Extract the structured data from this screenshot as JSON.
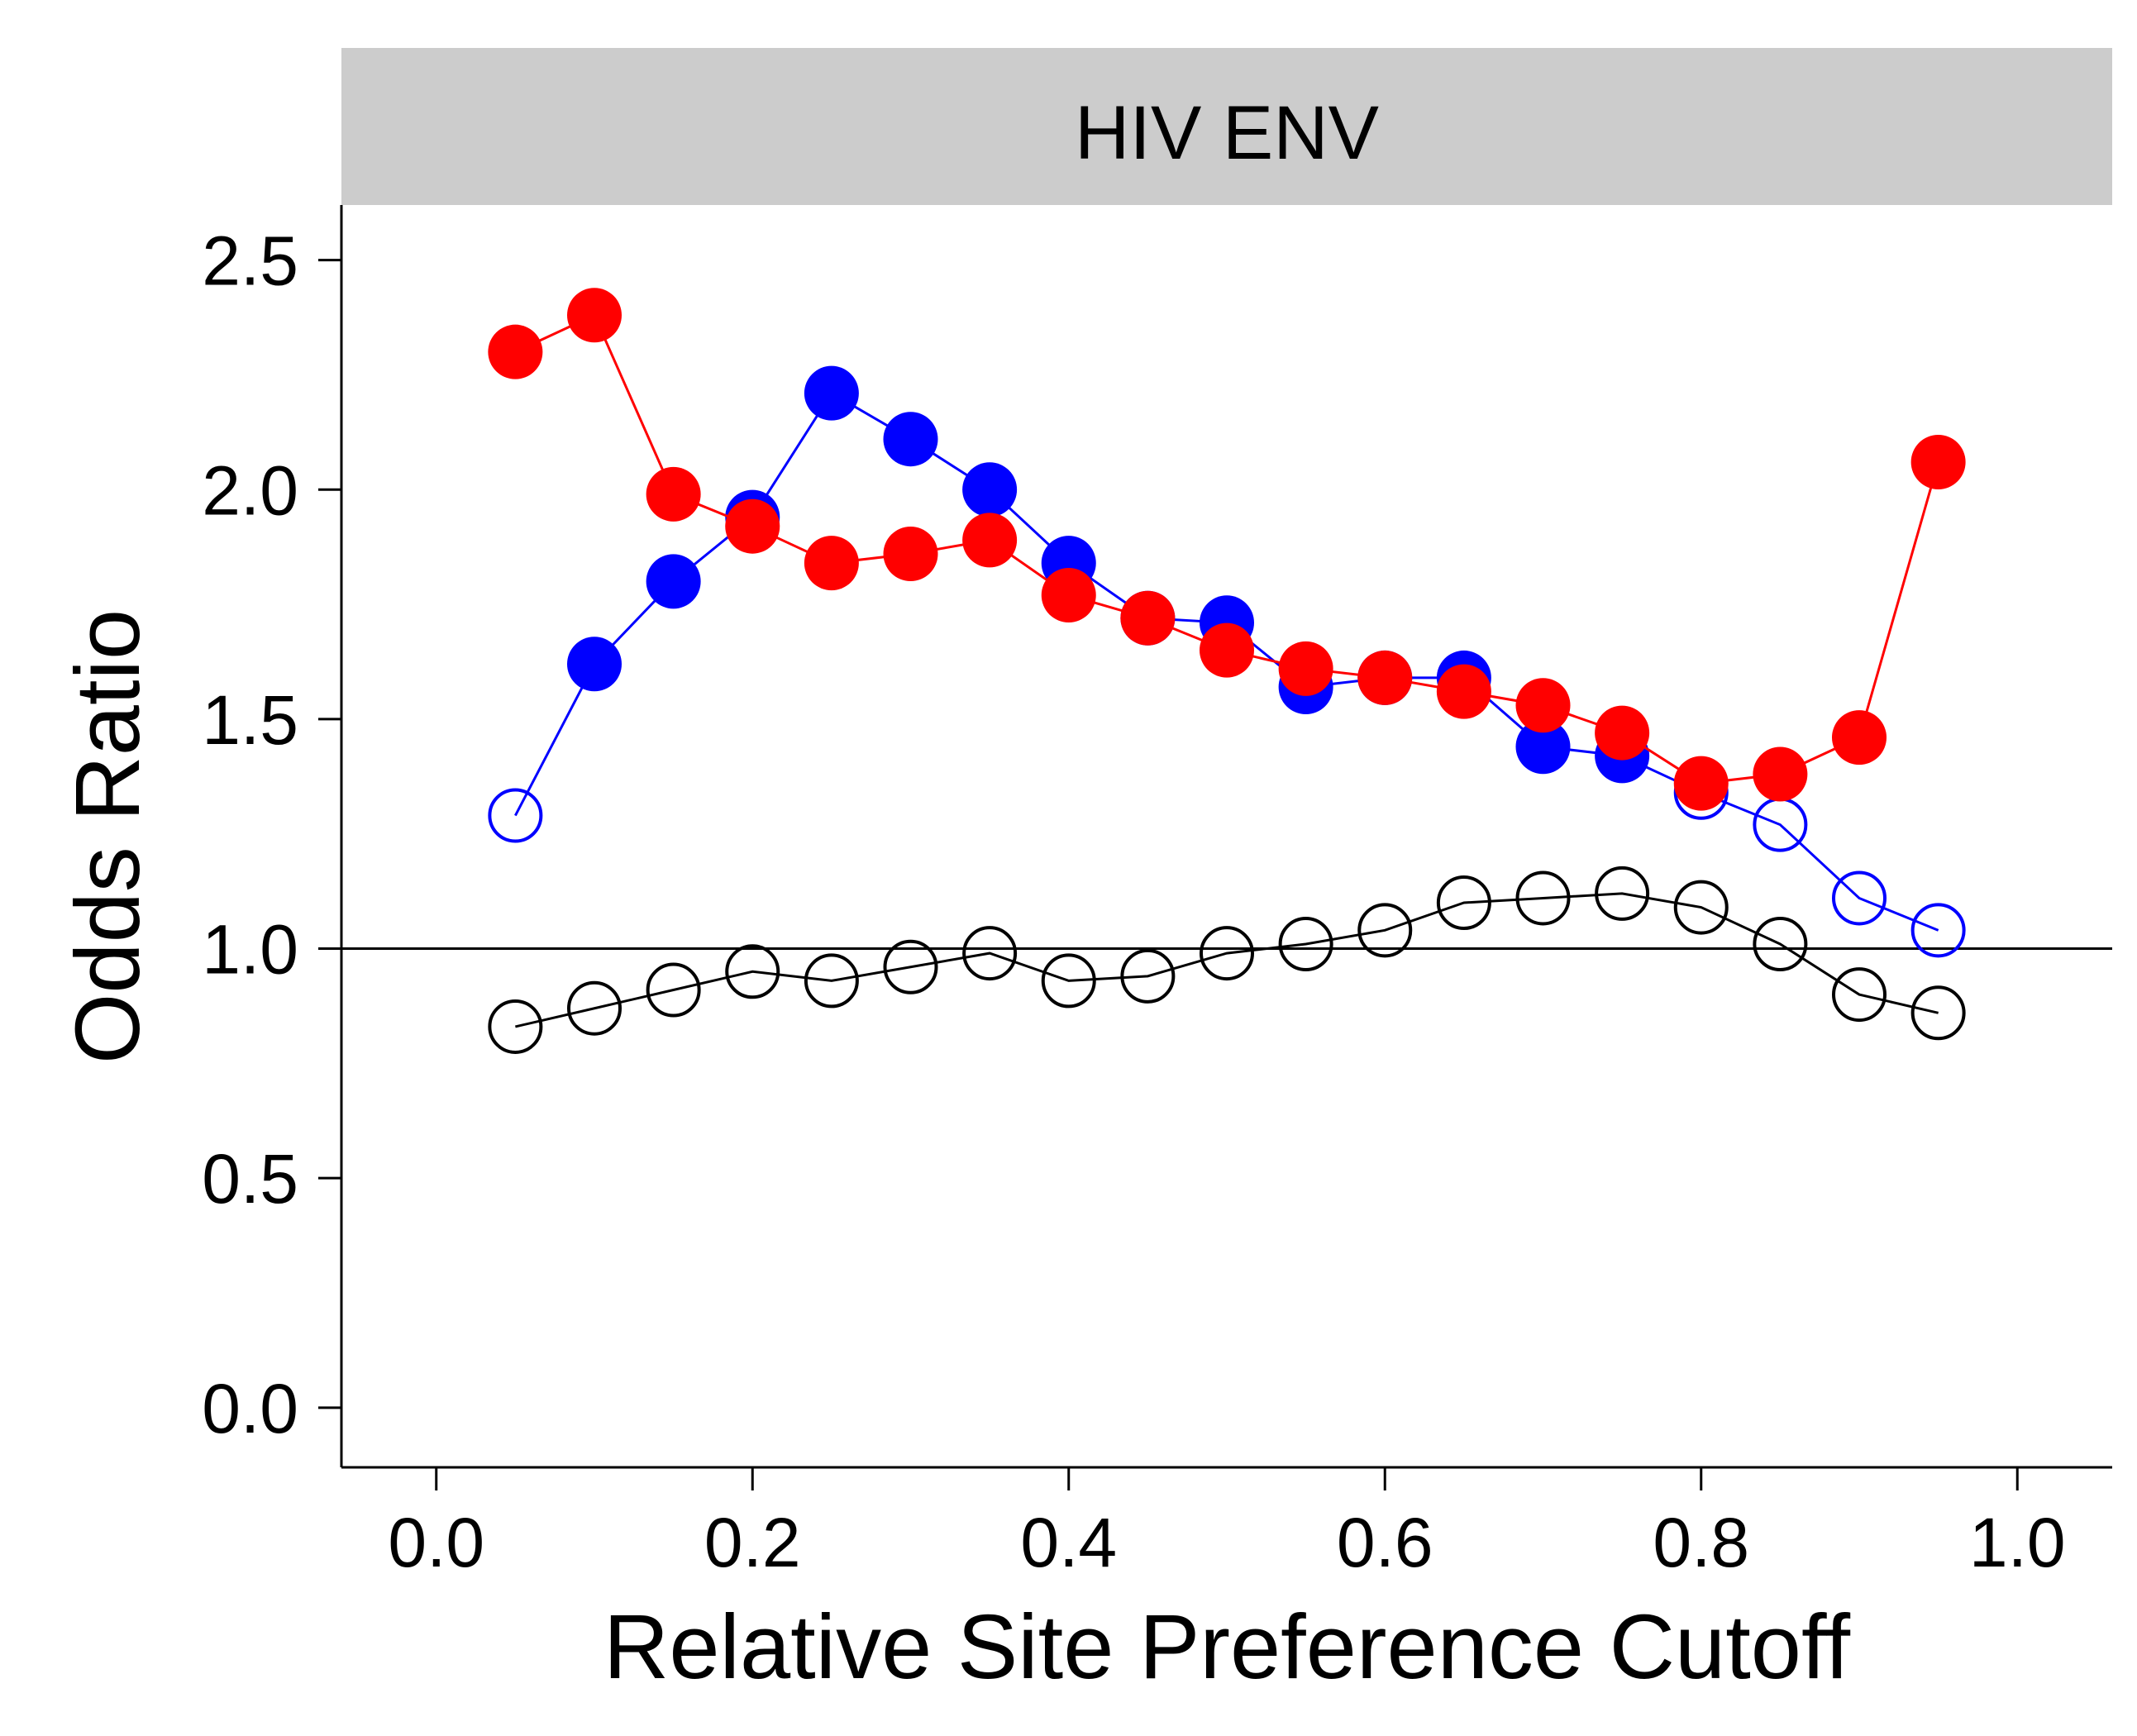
{
  "chart_data": {
    "type": "line",
    "title": "HIV ENV",
    "xlabel": "Relative Site Preference Cutoff",
    "ylabel": "Odds Ratio",
    "xlim": [
      -0.06,
      1.06
    ],
    "ylim": [
      -0.13,
      2.62
    ],
    "x_ticks": [
      "0.0",
      "0.2",
      "0.4",
      "0.6",
      "0.8",
      "1.0"
    ],
    "y_ticks": [
      "0.0",
      "0.5",
      "1.0",
      "1.5",
      "2.0",
      "2.5"
    ],
    "reference_line": 1.0,
    "grid": false,
    "legend": "none",
    "x": [
      0.05,
      0.1,
      0.15,
      0.2,
      0.25,
      0.3,
      0.35,
      0.4,
      0.45,
      0.5,
      0.55,
      0.6,
      0.65,
      0.7,
      0.75,
      0.8,
      0.85,
      0.9,
      0.95
    ],
    "series": [
      {
        "color": "#0000ff",
        "values": [
          1.29,
          1.62,
          1.8,
          1.94,
          2.21,
          2.11,
          2.0,
          1.84,
          1.72,
          1.71,
          1.57,
          1.59,
          1.59,
          1.44,
          1.42,
          1.34,
          1.27,
          1.11,
          1.04
        ],
        "filled": [
          false,
          true,
          true,
          true,
          true,
          true,
          true,
          true,
          true,
          true,
          true,
          true,
          true,
          true,
          true,
          false,
          false,
          false,
          false
        ]
      },
      {
        "color": "#ff0000",
        "values": [
          2.3,
          2.38,
          1.99,
          1.92,
          1.84,
          1.86,
          1.89,
          1.77,
          1.72,
          1.65,
          1.61,
          1.59,
          1.56,
          1.53,
          1.47,
          1.36,
          1.38,
          1.46,
          2.06
        ],
        "filled": [
          true,
          true,
          true,
          true,
          true,
          true,
          true,
          true,
          true,
          true,
          true,
          true,
          true,
          true,
          true,
          true,
          true,
          true,
          true
        ]
      },
      {
        "color": "#000000",
        "values": [
          0.83,
          0.87,
          0.91,
          0.95,
          0.93,
          0.96,
          0.99,
          0.93,
          0.94,
          0.99,
          1.01,
          1.04,
          1.1,
          1.11,
          1.12,
          1.09,
          1.01,
          0.9,
          0.86
        ],
        "filled": [
          false,
          false,
          false,
          false,
          false,
          false,
          false,
          false,
          false,
          false,
          false,
          false,
          false,
          false,
          false,
          false,
          false,
          false,
          false
        ]
      }
    ]
  }
}
